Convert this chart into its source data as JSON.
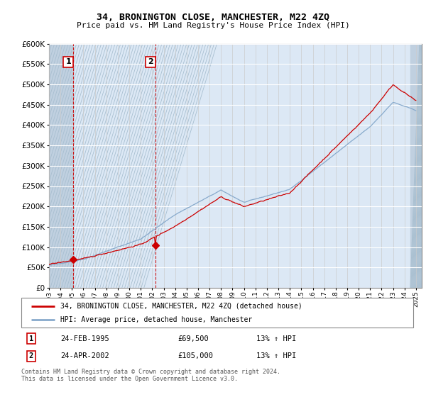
{
  "title": "34, BRONINGTON CLOSE, MANCHESTER, M22 4ZQ",
  "subtitle": "Price paid vs. HM Land Registry's House Price Index (HPI)",
  "legend_line1": "34, BRONINGTON CLOSE, MANCHESTER, M22 4ZQ (detached house)",
  "legend_line2": "HPI: Average price, detached house, Manchester",
  "sale1_label": "1",
  "sale1_date": "24-FEB-1995",
  "sale1_price": "£69,500",
  "sale1_hpi": "13% ↑ HPI",
  "sale2_label": "2",
  "sale2_date": "24-APR-2002",
  "sale2_price": "£105,000",
  "sale2_hpi": "13% ↑ HPI",
  "footer": "Contains HM Land Registry data © Crown copyright and database right 2024.\nThis data is licensed under the Open Government Licence v3.0.",
  "red_line_color": "#cc0000",
  "blue_line_color": "#88aacc",
  "marker1_x_year": 1995.12,
  "marker1_y": 69500,
  "marker2_x_year": 2002.29,
  "marker2_y": 105000,
  "xmin": 1993.0,
  "xmax": 2025.5,
  "ymin": 0,
  "ymax": 600000,
  "yticks": [
    0,
    50000,
    100000,
    150000,
    200000,
    250000,
    300000,
    350000,
    400000,
    450000,
    500000,
    550000,
    600000
  ],
  "background_color": "#ffffff",
  "plot_bg_color": "#dce8f5",
  "hatch_region_color": "#c8d8e8",
  "grid_color": "#aaaaaa",
  "hatch_end_x": 1995.12
}
